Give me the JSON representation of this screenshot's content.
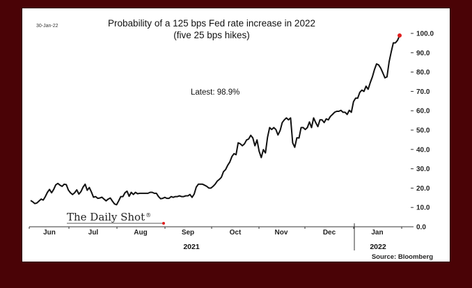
{
  "chart_data": {
    "type": "line",
    "date_stamp": "30-Jan-22",
    "title": "Probability of a 125 bps Fed rate increase in 2022",
    "subtitle": "(five 25 bps hikes)",
    "annotation": "Latest:  98.9%",
    "logo_text": "The Daily Shot",
    "logo_mark": "®",
    "source": "Source: Bloomberg",
    "x_tick_labels": [
      "Jun",
      "Jul",
      "Aug",
      "Sep",
      "Oct",
      "Nov",
      "Dec",
      "Jan"
    ],
    "x_year_labels": [
      "2021",
      "2022"
    ],
    "y_tick_labels": [
      "0.0",
      "10.0",
      "20.0",
      "30.0",
      "40.0",
      "50.0",
      "60.0",
      "70.0",
      "80.0",
      "90.0",
      "100.0"
    ],
    "ylim": [
      0,
      100
    ],
    "yaxis_position": "right",
    "grid": false,
    "line_color": "#111111",
    "marker_color": "#e02020",
    "series": [
      {
        "values": [
          13.6,
          12.9,
          12.0,
          12.3,
          13.3,
          14.3,
          13.8,
          15.6,
          17.8,
          19.3,
          17.6,
          19.3,
          21.7,
          22.4,
          21.5,
          20.9,
          22.0,
          21.8,
          19.0,
          17.6,
          16.7,
          17.6,
          19.1,
          16.9,
          18.2,
          20.5,
          22.0,
          18.9,
          20.3,
          18.0,
          15.3,
          15.6,
          14.7,
          14.9,
          15.3,
          14.3,
          13.4,
          14.3,
          14.9,
          13.3,
          11.8,
          11.4,
          13.4,
          15.6,
          15.6,
          17.6,
          18.4,
          15.8,
          17.8,
          16.7,
          17.8,
          17.1,
          17.3,
          17.3,
          17.3,
          17.3,
          17.3,
          17.8,
          17.8,
          17.3,
          17.3,
          15.6,
          14.5,
          14.7,
          15.2,
          14.7,
          14.7,
          15.6,
          15.2,
          15.6,
          15.6,
          16.0,
          15.6,
          15.6,
          16.0,
          16.0,
          16.7,
          15.2,
          16.9,
          20.5,
          22.0,
          22.0,
          22.0,
          21.5,
          20.9,
          20.0,
          20.0,
          20.9,
          22.0,
          23.6,
          24.5,
          25.6,
          28.5,
          29.6,
          31.8,
          33.5,
          36.3,
          37.8,
          37.3,
          43.4,
          42.9,
          41.9,
          42.9,
          44.9,
          45.4,
          47.3,
          45.9,
          41.9,
          44.9,
          39.1,
          35.8,
          39.9,
          38.2,
          46.3,
          51.3,
          50.3,
          51.3,
          50.3,
          47.5,
          49.8,
          53.9,
          55.3,
          56.3,
          55.3,
          56.3,
          43.4,
          41.1,
          46.0,
          45.9,
          51.3,
          51.3,
          50.3,
          51.3,
          54.2,
          51.3,
          56.3,
          53.9,
          51.8,
          55.3,
          55.3,
          53.9,
          55.8,
          55.3,
          57.1,
          58.1,
          59.2,
          59.7,
          59.7,
          60.2,
          59.2,
          59.2,
          58.1,
          60.2,
          59.2,
          64.7,
          66.5,
          66.5,
          69.5,
          70.7,
          70.0,
          72.7,
          71.1,
          74.5,
          77.5,
          81.3,
          84.2,
          83.7,
          82.0,
          79.6,
          77.0,
          77.5,
          85.2,
          90.5,
          95.1,
          95.1,
          96.4,
          98.9
        ]
      }
    ]
  }
}
